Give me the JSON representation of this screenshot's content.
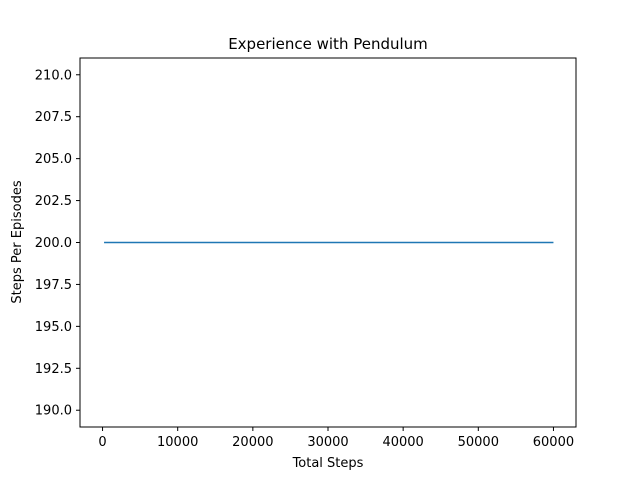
{
  "chart_data": {
    "type": "line",
    "title": "Experience with Pendulum",
    "xlabel": "Total Steps",
    "ylabel": "Steps Per Episodes",
    "xlim": [
      -3000,
      63000
    ],
    "ylim": [
      189.0,
      211.0
    ],
    "xticks": [
      0,
      10000,
      20000,
      30000,
      40000,
      50000,
      60000
    ],
    "xtick_labels": [
      "0",
      "10000",
      "20000",
      "30000",
      "40000",
      "50000",
      "60000"
    ],
    "yticks": [
      190.0,
      192.5,
      195.0,
      197.5,
      200.0,
      202.5,
      205.0,
      207.5,
      210.0
    ],
    "ytick_labels": [
      "190.0",
      "192.5",
      "195.0",
      "197.5",
      "200.0",
      "202.5",
      "205.0",
      "207.5",
      "210.0"
    ],
    "grid": false,
    "series": [
      {
        "color": "#1f77b4",
        "x": [
          200,
          10000,
          20000,
          30000,
          40000,
          50000,
          60000
        ],
        "y": [
          200,
          200,
          200,
          200,
          200,
          200,
          200
        ]
      }
    ]
  }
}
